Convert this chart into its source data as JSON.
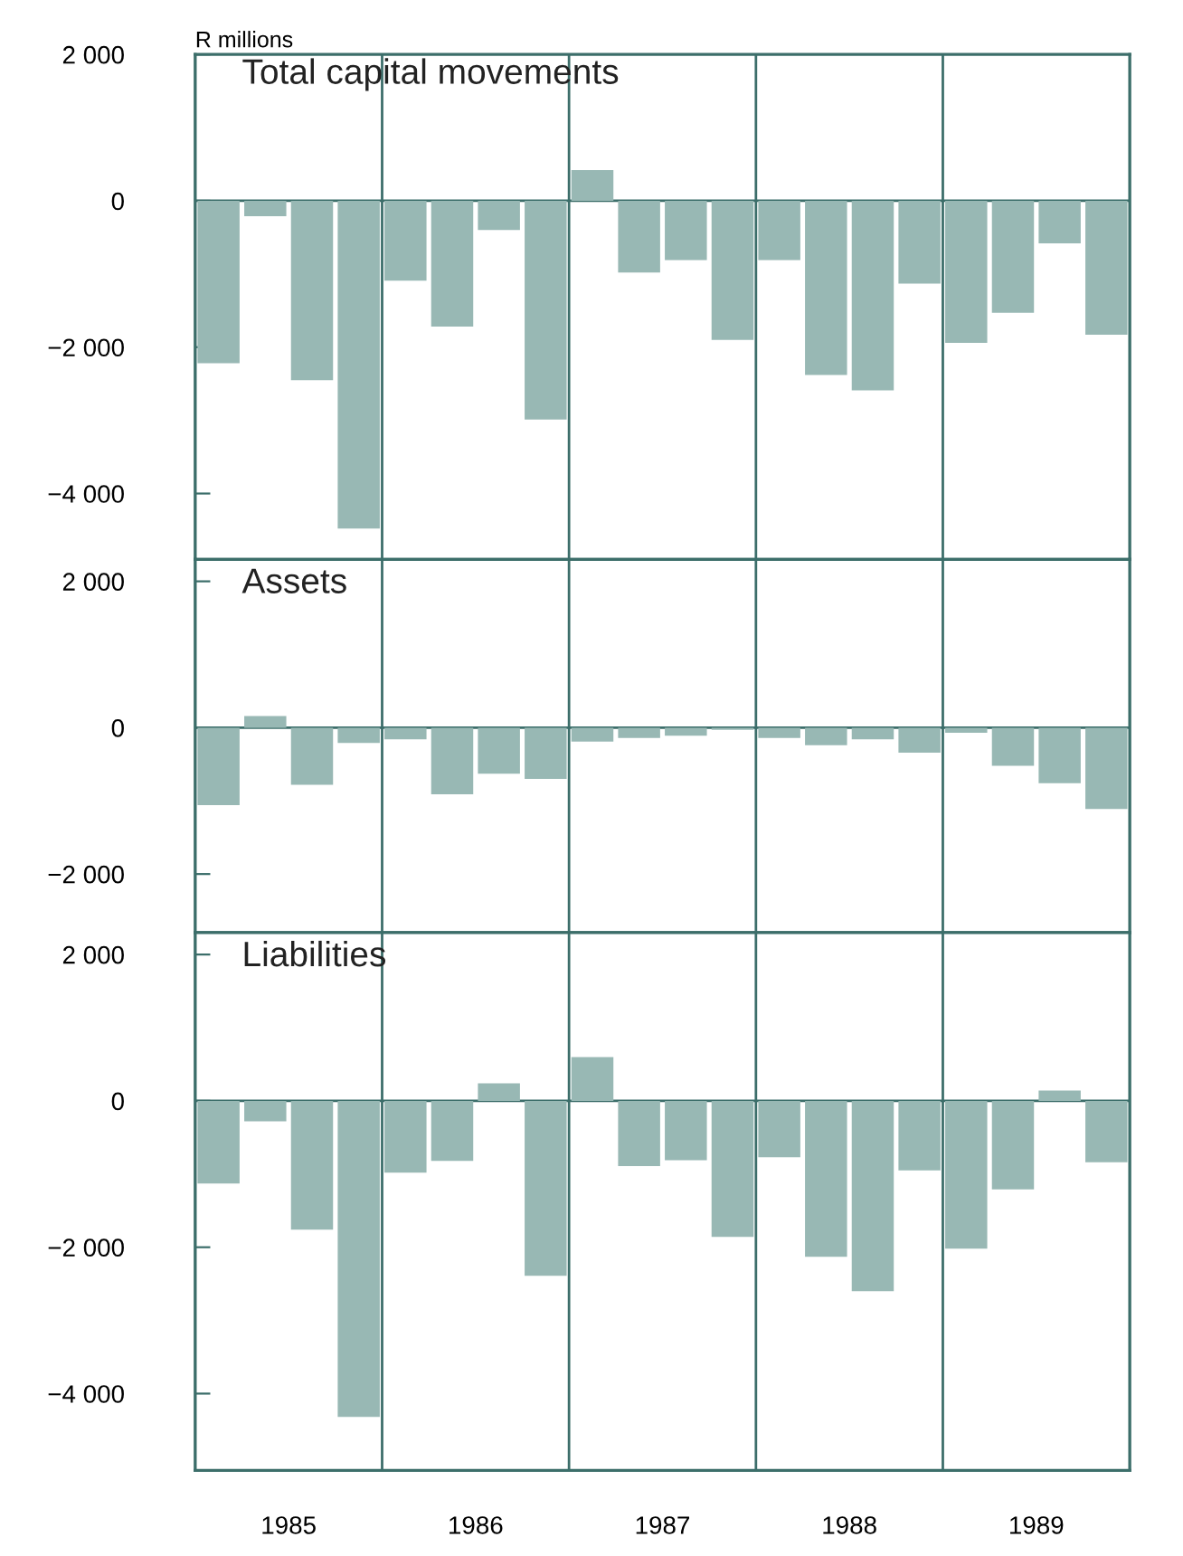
{
  "chart_data": [
    {
      "type": "bar",
      "title": "Total capital movements",
      "ylabel": "R millions",
      "categories": [
        null,
        null,
        null,
        null,
        null,
        null,
        null,
        null,
        null,
        null,
        null,
        null,
        null,
        null,
        null,
        null,
        null,
        null,
        null,
        null
      ],
      "values": [
        -2220,
        -210,
        -2450,
        -4480,
        -1090,
        -1720,
        -400,
        -2990,
        420,
        -980,
        -810,
        -1900,
        -810,
        -2380,
        -2590,
        -1130,
        -1940,
        -1530,
        -580,
        -1830
      ],
      "color": "#98b8b4",
      "ylim": [
        -4900,
        2000
      ],
      "yticks": [
        {
          "value": 2000,
          "label": "2 000"
        },
        0,
        {
          "value": -2000,
          "label": "−2 000"
        },
        {
          "value": -4000,
          "label": "−4 000"
        }
      ],
      "tick_labels": "y",
      "grid": false,
      "ref_lines": [
        {
          "axis": "y",
          "value": 0,
          "color": "#3c6e6a"
        }
      ]
    },
    {
      "type": "bar",
      "title": "Assets",
      "categories": [
        null,
        null,
        null,
        null,
        null,
        null,
        null,
        null,
        null,
        null,
        null,
        null,
        null,
        null,
        null,
        null,
        null,
        null,
        null,
        null
      ],
      "values": [
        -1060,
        160,
        -780,
        -210,
        -160,
        -910,
        -630,
        -700,
        -190,
        -140,
        -110,
        -30,
        -140,
        -240,
        -160,
        -340,
        -70,
        -520,
        -760,
        -1110
      ],
      "color": "#98b8b4",
      "ylim": [
        -2800,
        2300
      ],
      "yticks": [
        {
          "value": 2000,
          "label": "2 000"
        },
        0,
        {
          "value": -2000,
          "label": "−2 000"
        }
      ],
      "tick_labels": "y",
      "grid": false,
      "ref_lines": [
        {
          "axis": "y",
          "value": 0,
          "color": "#3c6e6a"
        }
      ]
    },
    {
      "type": "bar",
      "title": "Liabilities",
      "categories": [
        null,
        null,
        null,
        null,
        null,
        null,
        null,
        null,
        null,
        null,
        null,
        null,
        null,
        null,
        null,
        null,
        null,
        null,
        null,
        null
      ],
      "values": [
        -1130,
        -280,
        -1760,
        -4320,
        -980,
        -820,
        240,
        -2390,
        600,
        -890,
        -810,
        -1860,
        -770,
        -2130,
        -2600,
        -950,
        -2020,
        -1210,
        140,
        -840
      ],
      "color": "#98b8b4",
      "ylim": [
        -5050,
        2300
      ],
      "yticks": [
        {
          "value": 2000,
          "label": "2 000"
        },
        0,
        {
          "value": -2000,
          "label": "−2 000"
        },
        {
          "value": -4000,
          "label": "−4 000"
        }
      ],
      "tick_labels": "y",
      "grid": false,
      "annotations": [
        "1985",
        "1986",
        "1987",
        "1988",
        "1989"
      ],
      "ref_lines": [
        {
          "axis": "y",
          "value": 0,
          "color": "#3c6e6a"
        }
      ]
    }
  ]
}
